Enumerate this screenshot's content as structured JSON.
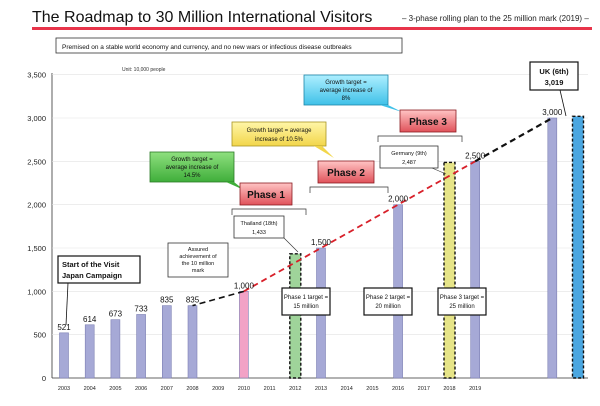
{
  "chart_data": {
    "type": "bar",
    "title": "The Roadmap to 30 Million International Visitors",
    "subtitle": "– 3-phase rolling plan to the 25 million mark (2019) –",
    "premise": "Premised on a stable world economy and currency, and no new wars or infectious disease outbreaks",
    "unit": "Unit: 10,000 people",
    "xlabel": "",
    "ylabel": "",
    "ylim": [
      0,
      3500
    ],
    "yticks": [
      "0",
      "500",
      "1,000",
      "1,500",
      "2,000",
      "2,500",
      "3,000",
      "3,500"
    ],
    "ytick_values": [
      0,
      500,
      1000,
      1500,
      2000,
      2500,
      3000,
      3500
    ],
    "grid": true,
    "categories": [
      "2003",
      "2004",
      "2005",
      "2006",
      "2007",
      "2008",
      "2009",
      "2010",
      "2011",
      "2012",
      "2013",
      "2014",
      "2015",
      "2016",
      "2017",
      "2018",
      "2019",
      "",
      "",
      "",
      ""
    ],
    "bars": [
      {
        "cat": 0,
        "value": 521,
        "label": "521",
        "color": "#a6a9d6",
        "style": "plain"
      },
      {
        "cat": 1,
        "value": 614,
        "label": "614",
        "color": "#a6a9d6",
        "style": "plain"
      },
      {
        "cat": 2,
        "value": 673,
        "label": "673",
        "color": "#a6a9d6",
        "style": "plain"
      },
      {
        "cat": 3,
        "value": 733,
        "label": "733",
        "color": "#a6a9d6",
        "style": "plain"
      },
      {
        "cat": 4,
        "value": 835,
        "label": "835",
        "color": "#a6a9d6",
        "style": "plain"
      },
      {
        "cat": 5,
        "value": 835,
        "label": "835",
        "color": "#a6a9d6",
        "style": "plain"
      },
      {
        "cat": 7,
        "value": 1000,
        "label": "1,000",
        "color": "#f2a2c6",
        "style": "plain"
      },
      {
        "cat": 9,
        "value": 1433,
        "label": "",
        "color": "#9fd49a",
        "style": "dashed"
      },
      {
        "cat": 10,
        "value": 1500,
        "label": "1,500",
        "color": "#a6a9d6",
        "style": "plain"
      },
      {
        "cat": 13,
        "value": 2000,
        "label": "2,000",
        "color": "#a6a9d6",
        "style": "plain"
      },
      {
        "cat": 15,
        "value": 2487,
        "label": "",
        "color": "#e6e488",
        "style": "dashed"
      },
      {
        "cat": 16,
        "value": 2500,
        "label": "2,500",
        "color": "#a6a9d6",
        "style": "plain"
      },
      {
        "cat": 19,
        "value": 3000,
        "label": "3,000",
        "color": "#a6a9d6",
        "style": "plain"
      },
      {
        "cat": 20,
        "value": 3019,
        "label": "",
        "color": "#4aa6e0",
        "style": "dashed"
      }
    ],
    "trend_black": [
      [
        7,
        1000
      ],
      [
        5,
        835
      ]
    ],
    "trend_red": [
      [
        7,
        1000
      ],
      [
        16,
        2500
      ]
    ],
    "trend_black_top": [
      [
        16,
        2500
      ],
      [
        19,
        3000
      ]
    ],
    "annotations": {
      "campaign": [
        "Start of the Visit",
        "Japan Campaign"
      ],
      "assured": [
        "Assured",
        "achievement of",
        "the 10 million",
        "mark"
      ],
      "thailand": [
        "Thailand (18th)",
        "1,433"
      ],
      "germany": [
        "Germany (9th)",
        "2,487"
      ],
      "uk": [
        "UK (6th)",
        "3,019"
      ],
      "growth1": [
        "Growth target =",
        "average increase of",
        "14.5%"
      ],
      "growth2": [
        "Growth target = average",
        "increase of 10.5%"
      ],
      "growth3": [
        "Growth target =",
        "average increase of",
        "8%"
      ],
      "phase1": "Phase 1",
      "phase2": "Phase 2",
      "phase3": "Phase 3",
      "target1": [
        "Phase 1 target =",
        "15 million"
      ],
      "target2": [
        "Phase 2 target =",
        "20 million"
      ],
      "target3": [
        "Phase 3 target =",
        "25 million"
      ]
    }
  }
}
